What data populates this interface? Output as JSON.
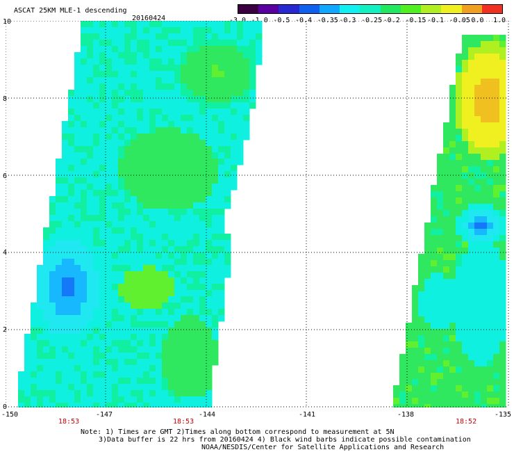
{
  "header": {
    "title": "ASCAT 25KM MLE-1 descending",
    "date": "20160424"
  },
  "colorbar": {
    "labels": [
      "-3.0",
      "-1.0",
      "-0.5",
      "-0.4",
      "-0.35",
      "-0.3",
      "-0.25",
      "-0.2",
      "-0.15",
      "-0.1",
      "-0.05",
      "0.0",
      "1.0"
    ],
    "colors": [
      "#3a0040",
      "#5a00a0",
      "#2828d0",
      "#1060f0",
      "#10a8ff",
      "#10f0f0",
      "#10f0c0",
      "#20e860",
      "#50f020",
      "#b0f020",
      "#f0f020",
      "#f0a020",
      "#f03020"
    ]
  },
  "axes": {
    "y_ticks": [
      "0",
      "2",
      "4",
      "6",
      "8",
      "10"
    ],
    "x_ticks": [
      "-150",
      "-147",
      "-144",
      "-141",
      "-138",
      "-135"
    ]
  },
  "time_labels": [
    "18:53",
    "18:53",
    "18:52"
  ],
  "notes": [
    "Note: 1) Times are GMT 2)Times along bottom correspond to measurement at 5N",
    "3)Data buffer is 22 hrs from 20160424 4) Black wind barbs indicate possible contamination",
    "NOAA/NESDIS/Center for Satellite Applications and Research"
  ]
}
